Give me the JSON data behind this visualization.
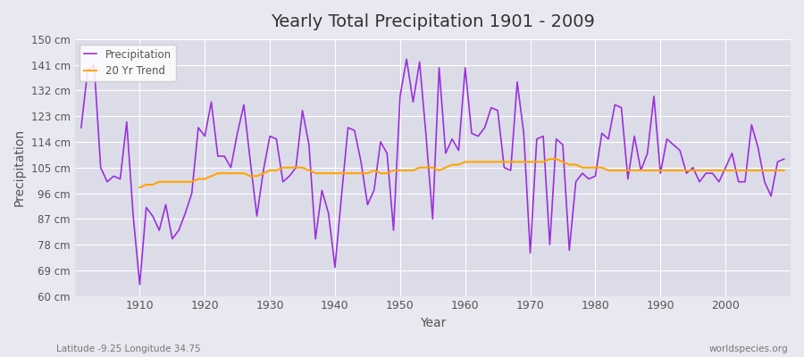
{
  "title": "Yearly Total Precipitation 1901 - 2009",
  "xlabel": "Year",
  "ylabel": "Precipitation",
  "subtitle": "Latitude -9.25 Longitude 34.75",
  "watermark": "worldspecies.org",
  "ylim": [
    60,
    150
  ],
  "yticks": [
    60,
    69,
    78,
    87,
    96,
    105,
    114,
    123,
    132,
    141,
    150
  ],
  "ytick_labels": [
    "60 cm",
    "69 cm",
    "78 cm",
    "87 cm",
    "96 cm",
    "105 cm",
    "114 cm",
    "123 cm",
    "132 cm",
    "141 cm",
    "150 cm"
  ],
  "precipitation_color": "#9B30D9",
  "trend_color": "#FFA500",
  "background_color": "#E8E8F0",
  "plot_bg_color": "#DCDCE8",
  "grid_color": "#FFFFFF",
  "years": [
    1901,
    1902,
    1903,
    1904,
    1905,
    1906,
    1907,
    1908,
    1909,
    1910,
    1911,
    1912,
    1913,
    1914,
    1915,
    1916,
    1917,
    1918,
    1919,
    1920,
    1921,
    1922,
    1923,
    1924,
    1925,
    1926,
    1927,
    1928,
    1929,
    1930,
    1931,
    1932,
    1933,
    1934,
    1935,
    1936,
    1937,
    1938,
    1939,
    1940,
    1941,
    1942,
    1943,
    1944,
    1945,
    1946,
    1947,
    1948,
    1949,
    1950,
    1951,
    1952,
    1953,
    1954,
    1955,
    1956,
    1957,
    1958,
    1959,
    1960,
    1961,
    1962,
    1963,
    1964,
    1965,
    1966,
    1967,
    1968,
    1969,
    1970,
    1971,
    1972,
    1973,
    1974,
    1975,
    1976,
    1977,
    1978,
    1979,
    1980,
    1981,
    1982,
    1983,
    1984,
    1985,
    1986,
    1987,
    1988,
    1989,
    1990,
    1991,
    1992,
    1993,
    1994,
    1995,
    1996,
    1997,
    1998,
    1999,
    2000,
    2001,
    2002,
    2003,
    2004,
    2005,
    2006,
    2007,
    2008,
    2009
  ],
  "precipitation": [
    119,
    139,
    141,
    105,
    100,
    102,
    101,
    121,
    88,
    64,
    91,
    88,
    83,
    92,
    80,
    83,
    89,
    96,
    119,
    116,
    128,
    109,
    109,
    105,
    117,
    127,
    107,
    88,
    104,
    116,
    115,
    100,
    102,
    105,
    125,
    113,
    80,
    97,
    89,
    70,
    95,
    119,
    118,
    107,
    92,
    97,
    114,
    110,
    83,
    130,
    143,
    128,
    142,
    116,
    87,
    140,
    110,
    115,
    111,
    140,
    117,
    116,
    119,
    126,
    125,
    105,
    104,
    135,
    117,
    75,
    115,
    116,
    78,
    115,
    113,
    76,
    100,
    103,
    101,
    102,
    117,
    115,
    127,
    126,
    101,
    116,
    104,
    110,
    130,
    103,
    115,
    113,
    111,
    103,
    105,
    100,
    103,
    103,
    100,
    105,
    110,
    100,
    100,
    120,
    112,
    100,
    95,
    107,
    108
  ],
  "trend_years": [
    1910,
    1911,
    1912,
    1913,
    1914,
    1915,
    1916,
    1917,
    1918,
    1919,
    1920,
    1921,
    1922,
    1923,
    1924,
    1925,
    1926,
    1927,
    1928,
    1929,
    1930,
    1931,
    1932,
    1933,
    1934,
    1935,
    1936,
    1937,
    1938,
    1939,
    1940,
    1941,
    1942,
    1943,
    1944,
    1945,
    1946,
    1947,
    1948,
    1949,
    1950,
    1951,
    1952,
    1953,
    1954,
    1955,
    1956,
    1957,
    1958,
    1959,
    1960,
    1961,
    1962,
    1963,
    1964,
    1965,
    1966,
    1967,
    1968,
    1969,
    1970,
    1971,
    1972,
    1973,
    1974,
    1975,
    1976,
    1977,
    1978,
    1979,
    1980,
    1981,
    1982,
    1983,
    1984,
    1985,
    1986,
    1987,
    1988,
    1989,
    1990,
    1991,
    1992,
    1993,
    1994,
    1995,
    1996,
    1997,
    1998,
    1999,
    2000,
    2001,
    2002,
    2003,
    2004,
    2005,
    2006,
    2007,
    2008,
    2009
  ],
  "trend": [
    98,
    99,
    99,
    100,
    100,
    100,
    100,
    100,
    100,
    101,
    101,
    102,
    103,
    103,
    103,
    103,
    103,
    102,
    102,
    103,
    104,
    104,
    105,
    105,
    105,
    105,
    104,
    103,
    103,
    103,
    103,
    103,
    103,
    103,
    103,
    103,
    104,
    103,
    103,
    104,
    104,
    104,
    104,
    105,
    105,
    105,
    104,
    105,
    106,
    106,
    107,
    107,
    107,
    107,
    107,
    107,
    107,
    107,
    107,
    107,
    107,
    107,
    107,
    108,
    108,
    107,
    106,
    106,
    105,
    105,
    105,
    105,
    104,
    104,
    104,
    104,
    104,
    104,
    104,
    104,
    104,
    104,
    104,
    104,
    104,
    104,
    104,
    104,
    104,
    104,
    104,
    104,
    104,
    104,
    104,
    104,
    104,
    104,
    104,
    104
  ]
}
